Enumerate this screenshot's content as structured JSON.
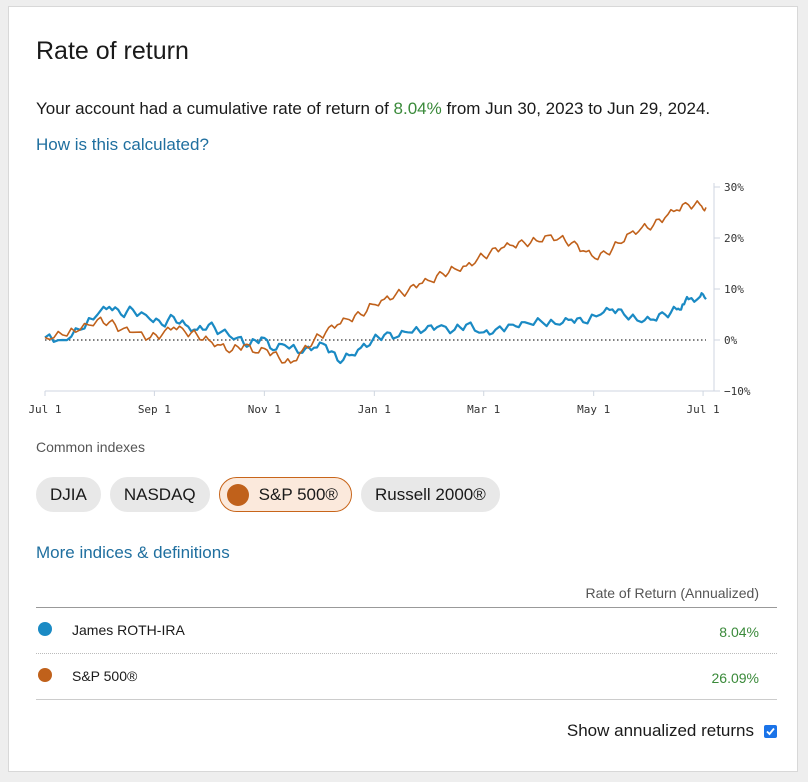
{
  "title": "Rate of return",
  "summary": {
    "prefix": "Your account had a cumulative rate of return of ",
    "percent": "8.04%",
    "suffix": " from Jun 30, 2023 to Jun 29, 2024."
  },
  "how_link": "How is this calculated?",
  "chart_data": {
    "type": "line",
    "x_tick_labels": [
      "Jul 1",
      "Sep 1",
      "Nov 1",
      "Jan 1",
      "Mar 1",
      "May 1",
      "Jul 1"
    ],
    "y_tick_labels": [
      "30%",
      "20%",
      "10%",
      "0%",
      "−10%"
    ],
    "ylim": [
      -10,
      30
    ],
    "zero_line": "dotted",
    "series": [
      {
        "name": "James ROTH-IRA",
        "color": "#1a8ac4",
        "points": [
          [
            0,
            0.5
          ],
          [
            3,
            0
          ],
          [
            6,
            2
          ],
          [
            9,
            5
          ],
          [
            11,
            6.5
          ],
          [
            13,
            5
          ],
          [
            15,
            6
          ],
          [
            18,
            4
          ],
          [
            20,
            3
          ],
          [
            22,
            4.5
          ],
          [
            24,
            3
          ],
          [
            26,
            2
          ],
          [
            28,
            3
          ],
          [
            30,
            1.5
          ],
          [
            33,
            0.5
          ],
          [
            35,
            -1
          ],
          [
            37,
            0.5
          ],
          [
            39,
            -2
          ],
          [
            41,
            -1
          ],
          [
            44,
            -2.5
          ],
          [
            46,
            -1.5
          ],
          [
            48,
            -1
          ],
          [
            50,
            -4
          ],
          [
            52,
            -3
          ],
          [
            54,
            -1.5
          ],
          [
            56,
            0
          ],
          [
            58,
            1
          ],
          [
            60,
            0.5
          ],
          [
            62,
            1.5
          ],
          [
            65,
            2
          ],
          [
            67,
            2.5
          ],
          [
            70,
            2
          ],
          [
            72,
            3
          ],
          [
            75,
            1.5
          ],
          [
            77,
            2
          ],
          [
            80,
            3
          ],
          [
            82,
            3.5
          ],
          [
            85,
            3.5
          ],
          [
            88,
            3
          ],
          [
            90,
            4
          ],
          [
            92,
            3.5
          ],
          [
            95,
            5
          ],
          [
            97,
            6
          ],
          [
            99,
            5
          ],
          [
            102,
            3.5
          ],
          [
            104,
            4
          ],
          [
            106,
            5
          ],
          [
            108,
            6
          ],
          [
            109,
            7
          ],
          [
            110,
            8
          ],
          [
            112,
            8.5
          ],
          [
            113,
            8
          ]
        ]
      },
      {
        "name": "S&P 500®",
        "color": "#c0611b",
        "points": [
          [
            0,
            0.5
          ],
          [
            3,
            1
          ],
          [
            6,
            2
          ],
          [
            9,
            4
          ],
          [
            11,
            3.5
          ],
          [
            13,
            2
          ],
          [
            15,
            1.5
          ],
          [
            18,
            0.5
          ],
          [
            20,
            1
          ],
          [
            22,
            2.5
          ],
          [
            24,
            1.5
          ],
          [
            26,
            1
          ],
          [
            28,
            0
          ],
          [
            30,
            -1
          ],
          [
            32,
            -2
          ],
          [
            34,
            -1
          ],
          [
            36,
            -2.5
          ],
          [
            38,
            -2
          ],
          [
            40,
            -3.5
          ],
          [
            42,
            -4.5
          ],
          [
            44,
            -2
          ],
          [
            46,
            0
          ],
          [
            48,
            1.5
          ],
          [
            50,
            3
          ],
          [
            52,
            4
          ],
          [
            54,
            5
          ],
          [
            56,
            7
          ],
          [
            58,
            8
          ],
          [
            60,
            9
          ],
          [
            62,
            9.5
          ],
          [
            64,
            11
          ],
          [
            66,
            11.5
          ],
          [
            68,
            13
          ],
          [
            70,
            14
          ],
          [
            72,
            14.5
          ],
          [
            74,
            16
          ],
          [
            76,
            17
          ],
          [
            78,
            18
          ],
          [
            80,
            18.5
          ],
          [
            82,
            19
          ],
          [
            84,
            19.5
          ],
          [
            86,
            20.5
          ],
          [
            88,
            20
          ],
          [
            90,
            19
          ],
          [
            92,
            17.5
          ],
          [
            94,
            16
          ],
          [
            96,
            17
          ],
          [
            98,
            19
          ],
          [
            100,
            21
          ],
          [
            102,
            22
          ],
          [
            104,
            22.5
          ],
          [
            106,
            24
          ],
          [
            108,
            25.5
          ],
          [
            110,
            26.5
          ],
          [
            112,
            26.5
          ],
          [
            113,
            26
          ]
        ]
      }
    ]
  },
  "common_label": "Common indexes",
  "chips": [
    {
      "label": "DJIA"
    },
    {
      "label": "NASDAQ"
    },
    {
      "label": "S&P 500®"
    },
    {
      "label": "Russell 2000®"
    }
  ],
  "more_link": "More indices & definitions",
  "table": {
    "header": "Rate of Return (Annualized)",
    "rows": [
      {
        "name": "James ROTH-IRA",
        "value": "8.04%",
        "color": "#1a8ac4"
      },
      {
        "name": "S&P 500®",
        "value": "26.09%",
        "color": "#c0611b"
      }
    ]
  },
  "annualized_label": "Show annualized returns"
}
